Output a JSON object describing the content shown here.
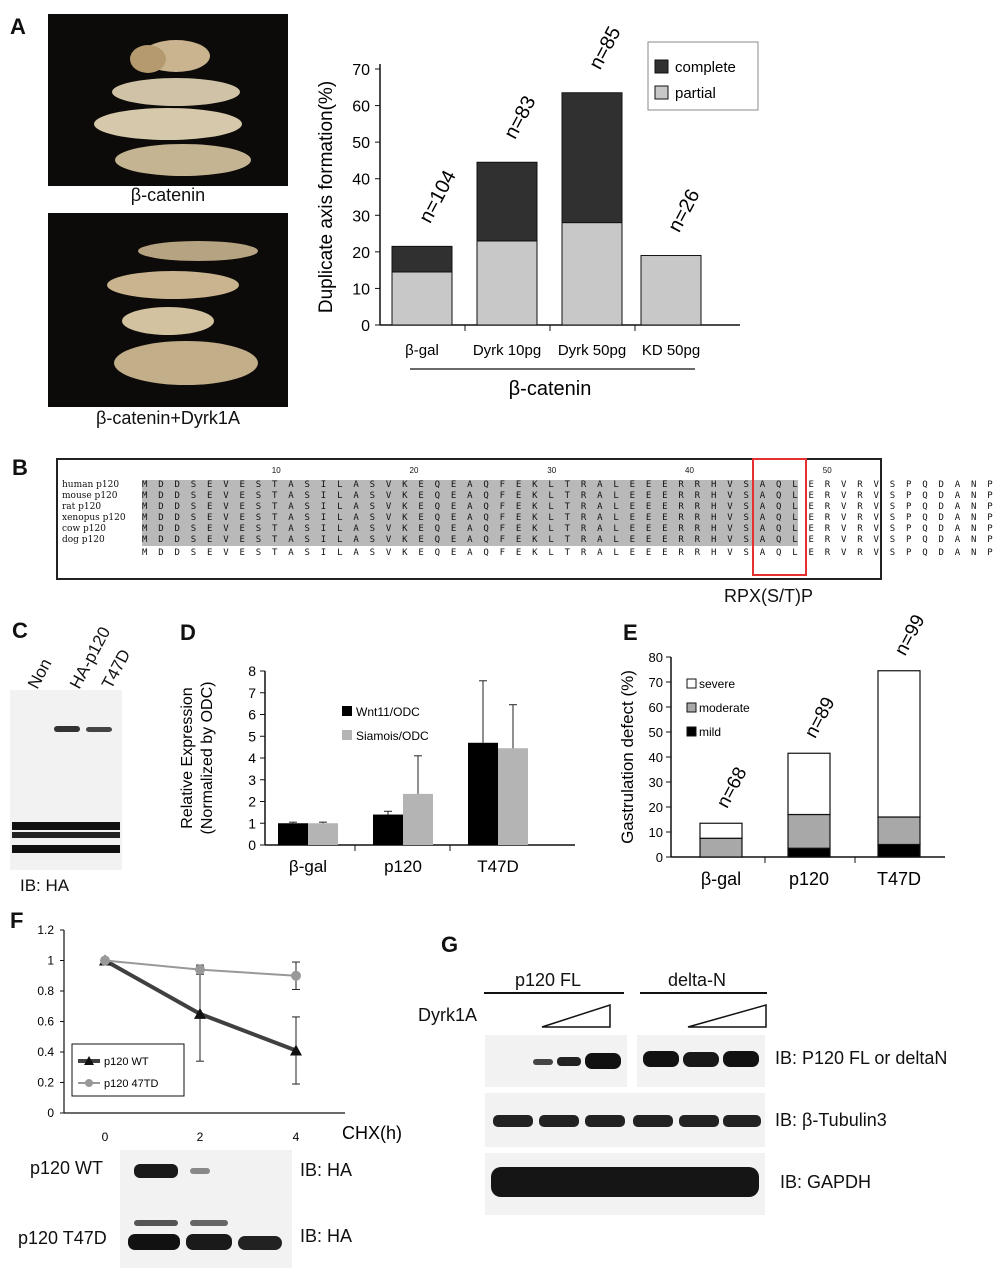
{
  "panels": {
    "a": "A",
    "b": "B",
    "c": "C",
    "d": "D",
    "e": "E",
    "f": "F",
    "g": "G"
  },
  "panel_a": {
    "photo_top_caption": "β-catenin",
    "photo_bottom_caption": "β-catenin+Dyrk1A",
    "legend": [
      "complete",
      "partial"
    ],
    "group_label": "β-catenin"
  },
  "panel_b": {
    "species": [
      "human p120",
      "mouse p120",
      "rat p120",
      "xenopus p120",
      "cow p120",
      "dog p120"
    ],
    "ruler": [
      "10",
      "20",
      "30",
      "40",
      "50"
    ],
    "consensus_sequence": "MDDSEVESTASILASVKEQEAQFEKLTRALEEERRHVSAQLERVRVSPQDANP",
    "motif_label": "RPX(S/T)P"
  },
  "panel_c": {
    "lanes": [
      "Non",
      "HA-p120",
      "T47D"
    ],
    "ib_label": "IB: HA"
  },
  "panel_f_blot": {
    "rows": [
      "p120 WT",
      "p120 T47D"
    ],
    "ib_labels": [
      "IB: HA",
      "IB: HA"
    ]
  },
  "panel_g": {
    "group_labels": [
      "p120 FL",
      "delta-N"
    ],
    "dyrk_label": "Dyrk1A",
    "ib_labels": [
      "IB: P120 FL or deltaN",
      "IB: β-Tubulin3",
      "IB: GAPDH"
    ]
  },
  "chart_data": [
    {
      "id": "A",
      "type": "bar",
      "stacked": true,
      "categories": [
        "β-gal",
        "Dyrk  10pg",
        "Dyrk  50pg",
        "KD 50pg"
      ],
      "series": [
        {
          "name": "partial",
          "values": [
            14.5,
            23,
            28,
            19
          ],
          "color": "#c8c8c8"
        },
        {
          "name": "complete",
          "values": [
            7,
            21.5,
            35.5,
            0
          ],
          "color": "#303030"
        }
      ],
      "annotations": [
        "n=104",
        "n=83",
        "n=85",
        "n=26"
      ],
      "ylabel": "Duplicate axis formation(%)",
      "yticks": [
        0,
        10,
        20,
        30,
        40,
        50,
        60,
        70
      ],
      "ylim": [
        0,
        70
      ],
      "xlabel": "β-catenin",
      "legend_position": "top-right"
    },
    {
      "id": "D",
      "type": "bar",
      "categories": [
        "β-gal",
        "p120",
        "T47D"
      ],
      "series": [
        {
          "name": "Wnt11/ODC",
          "values": [
            1,
            1.4,
            4.7
          ],
          "errors": [
            0.05,
            0.15,
            2.85
          ],
          "color": "#000000"
        },
        {
          "name": "Siamois/ODC",
          "values": [
            1,
            2.35,
            4.45
          ],
          "errors": [
            0.05,
            1.75,
            2.0
          ],
          "color": "#b4b4b4"
        }
      ],
      "ylabel": "Relative Expression (Normalized by ODC)",
      "ylabel_lines": [
        "Relative Expression",
        "(Normalized by ODC)"
      ],
      "yticks": [
        0,
        1,
        2,
        3,
        4,
        5,
        6,
        7,
        8
      ],
      "ylim": [
        0,
        8
      ],
      "legend_position": "top-left"
    },
    {
      "id": "E",
      "type": "bar",
      "stacked": true,
      "categories": [
        "β-gal",
        "p120",
        "T47D"
      ],
      "series": [
        {
          "name": "mild",
          "values": [
            0,
            3.5,
            5
          ],
          "color": "#000000"
        },
        {
          "name": "moderate",
          "values": [
            7.5,
            13.5,
            11
          ],
          "color": "#a8a8a8"
        },
        {
          "name": "severe",
          "values": [
            6,
            24.5,
            58.5
          ],
          "color": "#ffffff"
        }
      ],
      "annotations": [
        "n=68",
        "n=89",
        "n=99"
      ],
      "ylabel": "Gastrulation defect (%)",
      "yticks": [
        0,
        10,
        20,
        30,
        40,
        50,
        60,
        70,
        80
      ],
      "ylim": [
        0,
        80
      ],
      "legend_order": [
        "severe",
        "moderate",
        "mild"
      ],
      "legend_position": "top-left"
    },
    {
      "id": "F",
      "type": "line",
      "x": [
        0,
        2,
        4
      ],
      "xticks": [
        "0",
        "2",
        "4"
      ],
      "series": [
        {
          "name": "p120 WT",
          "values": [
            1,
            0.65,
            0.41
          ],
          "errors": [
            0,
            0.31,
            0.22
          ],
          "color": "#404040",
          "marker": "triangle"
        },
        {
          "name": "p120 47TD",
          "values": [
            1,
            0.94,
            0.9
          ],
          "errors": [
            0,
            0.03,
            0.09
          ],
          "color": "#999999",
          "marker": "circle"
        }
      ],
      "yticks": [
        "0",
        "0.2",
        "0.4",
        "0.6",
        "0.8",
        "1",
        "1.2"
      ],
      "ylim": [
        0,
        1.2
      ],
      "xlabel": "CHX(h)",
      "legend_position": "bottom-left"
    }
  ]
}
